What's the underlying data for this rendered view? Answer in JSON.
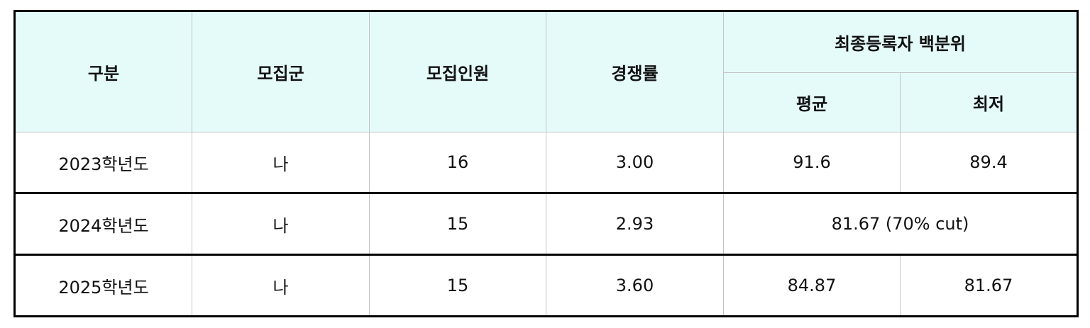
{
  "header": {
    "category": "구분",
    "group": "모집군",
    "quota": "모집인원",
    "competition": "경쟁률",
    "percentile": "최종등록자 백분위",
    "average": "평균",
    "lowest": "최저"
  },
  "rows": [
    {
      "year": "2023학년도",
      "group": "나",
      "quota": "16",
      "competition": "3.00",
      "average": "91.6",
      "lowest": "89.4"
    },
    {
      "year": "2024학년도",
      "group": "나",
      "quota": "15",
      "competition": "2.93",
      "merged": "81.67 (70% cut)"
    },
    {
      "year": "2025학년도",
      "group": "나",
      "quota": "15",
      "competition": "3.60",
      "average": "84.87",
      "lowest": "81.67"
    }
  ]
}
